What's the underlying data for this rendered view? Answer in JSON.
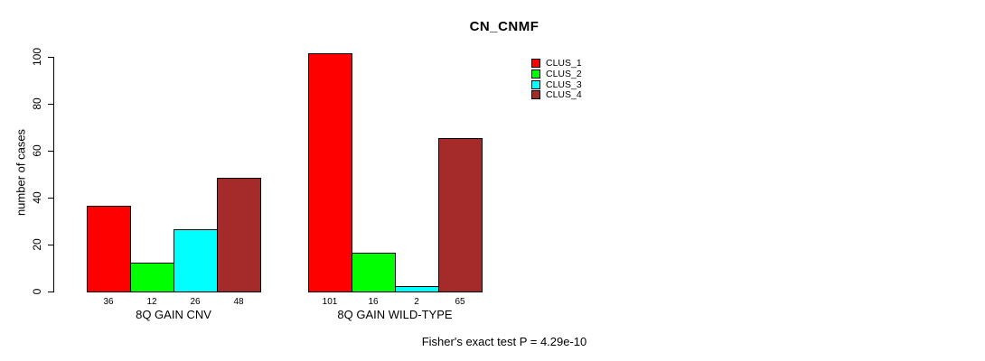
{
  "chart_data": {
    "type": "bar",
    "title": "CN_CNMF",
    "xlabel": "",
    "ylabel": "number of cases",
    "ylim": [
      0,
      100
    ],
    "yticks": [
      0,
      20,
      40,
      60,
      80,
      100
    ],
    "grid": false,
    "categories": [
      "8Q GAIN CNV",
      "8Q GAIN WILD-TYPE"
    ],
    "series": [
      {
        "name": "CLUS_1",
        "color": "#FF0000",
        "values": [
          36,
          101
        ]
      },
      {
        "name": "CLUS_2",
        "color": "#00FF00",
        "values": [
          12,
          16
        ]
      },
      {
        "name": "CLUS_3",
        "color": "#00FFFF",
        "values": [
          26,
          2
        ]
      },
      {
        "name": "CLUS_4",
        "color": "#A52A2A",
        "values": [
          48,
          65
        ]
      }
    ],
    "bar_value_labels_shown": true,
    "legend": {
      "position": "top-right",
      "entries": [
        "CLUS_1",
        "CLUS_2",
        "CLUS_3",
        "CLUS_4"
      ]
    },
    "annotation": "Fisher's exact test P = 4.29e-10"
  }
}
